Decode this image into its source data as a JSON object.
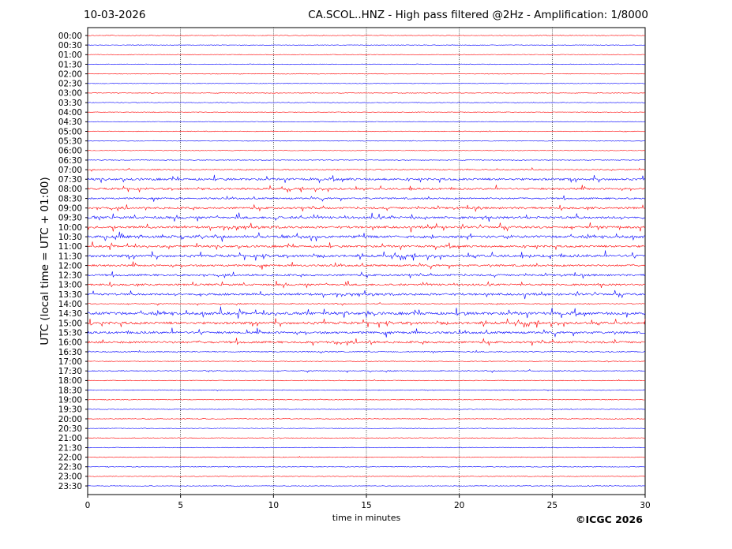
{
  "header": {
    "date": "10-03-2026",
    "title": "CA.SCOL..HNZ - High pass filtered @2Hz - Amplification: 1/8000"
  },
  "footer": {
    "copyright": "©ICGC 2026"
  },
  "chart_data": {
    "type": "line",
    "title": "CA.SCOL..HNZ - High pass filtered @2Hz - Amplification: 1/8000",
    "xlabel": "time in minutes",
    "ylabel": "UTC (local time = UTC + 01:00)",
    "xlim": [
      0,
      30
    ],
    "x_ticks": [
      0,
      5,
      10,
      15,
      20,
      25,
      30
    ],
    "vertical_grid_minutes": [
      5,
      10,
      15,
      20,
      25
    ],
    "grid": "dotted vertical lines every 5 minutes",
    "colors": {
      "odd_rows": "#ff0000",
      "even_rows": "#0000ff"
    },
    "rows": [
      {
        "label": "00:00",
        "color": "#ff0000",
        "activity": 0.05
      },
      {
        "label": "00:30",
        "color": "#0000ff",
        "activity": 0.05
      },
      {
        "label": "01:00",
        "color": "#ff0000",
        "activity": 0.05
      },
      {
        "label": "01:30",
        "color": "#0000ff",
        "activity": 0.05
      },
      {
        "label": "02:00",
        "color": "#ff0000",
        "activity": 0.05
      },
      {
        "label": "02:30",
        "color": "#0000ff",
        "activity": 0.05
      },
      {
        "label": "03:00",
        "color": "#ff0000",
        "activity": 0.05
      },
      {
        "label": "03:30",
        "color": "#0000ff",
        "activity": 0.05
      },
      {
        "label": "04:00",
        "color": "#ff0000",
        "activity": 0.05
      },
      {
        "label": "04:30",
        "color": "#0000ff",
        "activity": 0.06
      },
      {
        "label": "05:00",
        "color": "#ff0000",
        "activity": 0.07
      },
      {
        "label": "05:30",
        "color": "#0000ff",
        "activity": 0.06
      },
      {
        "label": "06:00",
        "color": "#ff0000",
        "activity": 0.06
      },
      {
        "label": "06:30",
        "color": "#0000ff",
        "activity": 0.08
      },
      {
        "label": "07:00",
        "color": "#ff0000",
        "activity": 0.2
      },
      {
        "label": "07:30",
        "color": "#0000ff",
        "activity": 0.6
      },
      {
        "label": "08:00",
        "color": "#ff0000",
        "activity": 0.5
      },
      {
        "label": "08:30",
        "color": "#0000ff",
        "activity": 0.4
      },
      {
        "label": "09:00",
        "color": "#ff0000",
        "activity": 0.55
      },
      {
        "label": "09:30",
        "color": "#0000ff",
        "activity": 0.65
      },
      {
        "label": "10:00",
        "color": "#ff0000",
        "activity": 0.6
      },
      {
        "label": "10:30",
        "color": "#0000ff",
        "activity": 0.7
      },
      {
        "label": "11:00",
        "color": "#ff0000",
        "activity": 0.55
      },
      {
        "label": "11:30",
        "color": "#0000ff",
        "activity": 0.7
      },
      {
        "label": "12:00",
        "color": "#ff0000",
        "activity": 0.5
      },
      {
        "label": "12:30",
        "color": "#0000ff",
        "activity": 0.5
      },
      {
        "label": "13:00",
        "color": "#ff0000",
        "activity": 0.5
      },
      {
        "label": "13:30",
        "color": "#0000ff",
        "activity": 0.55
      },
      {
        "label": "14:00",
        "color": "#ff0000",
        "activity": 0.2
      },
      {
        "label": "14:30",
        "color": "#0000ff",
        "activity": 0.8
      },
      {
        "label": "15:00",
        "color": "#ff0000",
        "activity": 0.7
      },
      {
        "label": "15:30",
        "color": "#0000ff",
        "activity": 0.6
      },
      {
        "label": "16:00",
        "color": "#ff0000",
        "activity": 0.6
      },
      {
        "label": "16:30",
        "color": "#0000ff",
        "activity": 0.2
      },
      {
        "label": "17:00",
        "color": "#ff0000",
        "activity": 0.1
      },
      {
        "label": "17:30",
        "color": "#0000ff",
        "activity": 0.2
      },
      {
        "label": "18:00",
        "color": "#ff0000",
        "activity": 0.08
      },
      {
        "label": "18:30",
        "color": "#0000ff",
        "activity": 0.1
      },
      {
        "label": "19:00",
        "color": "#ff0000",
        "activity": 0.08
      },
      {
        "label": "19:30",
        "color": "#0000ff",
        "activity": 0.08
      },
      {
        "label": "20:00",
        "color": "#ff0000",
        "activity": 0.07
      },
      {
        "label": "20:30",
        "color": "#0000ff",
        "activity": 0.08
      },
      {
        "label": "21:00",
        "color": "#ff0000",
        "activity": 0.1
      },
      {
        "label": "21:30",
        "color": "#0000ff",
        "activity": 0.06
      },
      {
        "label": "22:00",
        "color": "#ff0000",
        "activity": 0.1
      },
      {
        "label": "22:30",
        "color": "#0000ff",
        "activity": 0.1
      },
      {
        "label": "23:00",
        "color": "#ff0000",
        "activity": 0.08
      },
      {
        "label": "23:30",
        "color": "#0000ff",
        "activity": 0.06
      }
    ]
  }
}
